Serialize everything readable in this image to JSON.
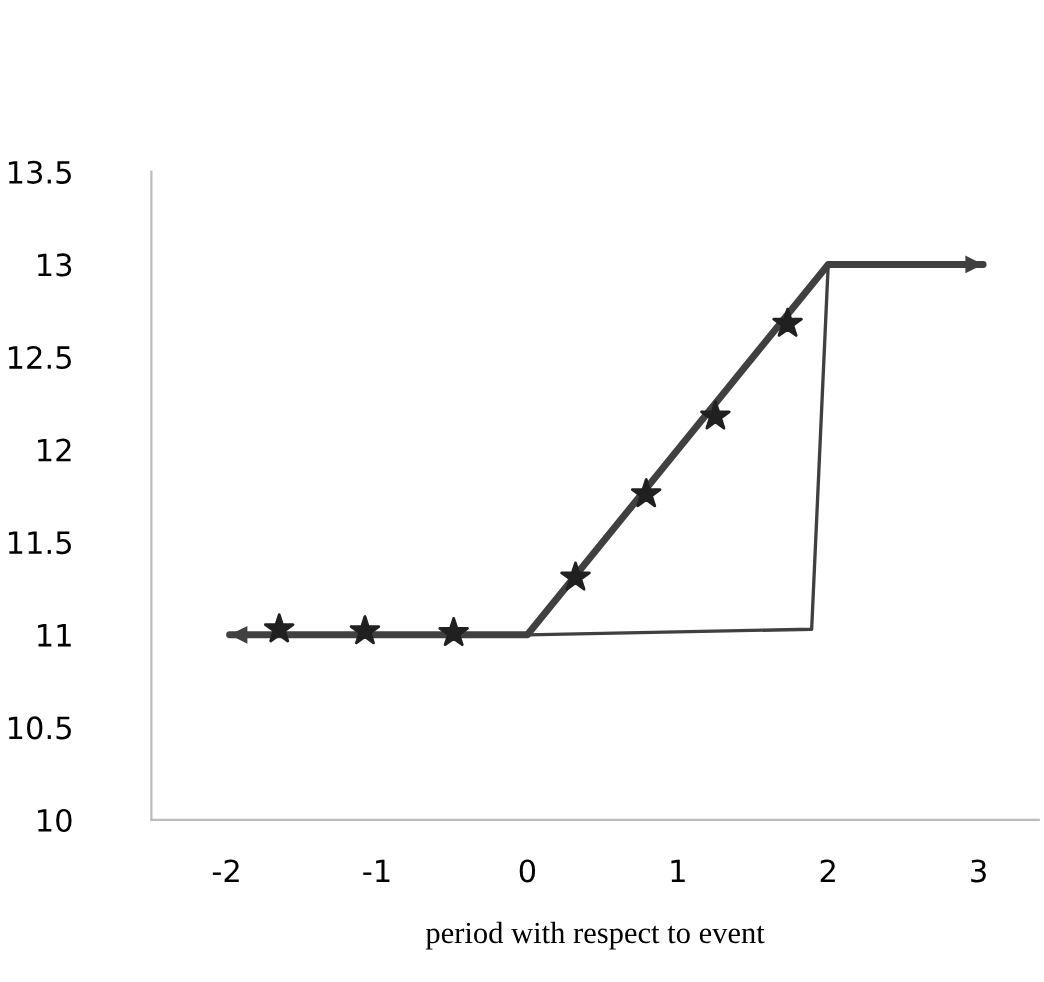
{
  "chart_data": {
    "type": "line",
    "xlabel": "period with respect to event",
    "xlim": [
      -2.5,
      3.4
    ],
    "ylim": [
      10,
      13.5
    ],
    "xticks": [
      -2,
      -1,
      0,
      1,
      2,
      3
    ],
    "yticks": [
      10,
      10.5,
      11,
      11.5,
      12,
      12.5,
      13,
      13.5
    ],
    "grid": false,
    "legend": false,
    "series": [
      {
        "color": "#404040",
        "x": [
          -1.98,
          0,
          2.0,
          3.03
        ],
        "values": [
          11,
          11,
          13,
          13
        ],
        "marker": "none"
      },
      {
        "color": "#404040",
        "x": [
          0,
          1.89,
          2.0
        ],
        "values": [
          11,
          11.03,
          13
        ],
        "marker": "none"
      },
      {
        "type": "scatter",
        "color": "#202020",
        "x": [
          -1.65,
          -1.08,
          -0.49,
          0.32,
          0.79,
          1.25,
          1.73
        ],
        "values": [
          11.03,
          11.02,
          11.01,
          11.31,
          11.76,
          12.18,
          12.68
        ],
        "marker": "star"
      }
    ]
  }
}
